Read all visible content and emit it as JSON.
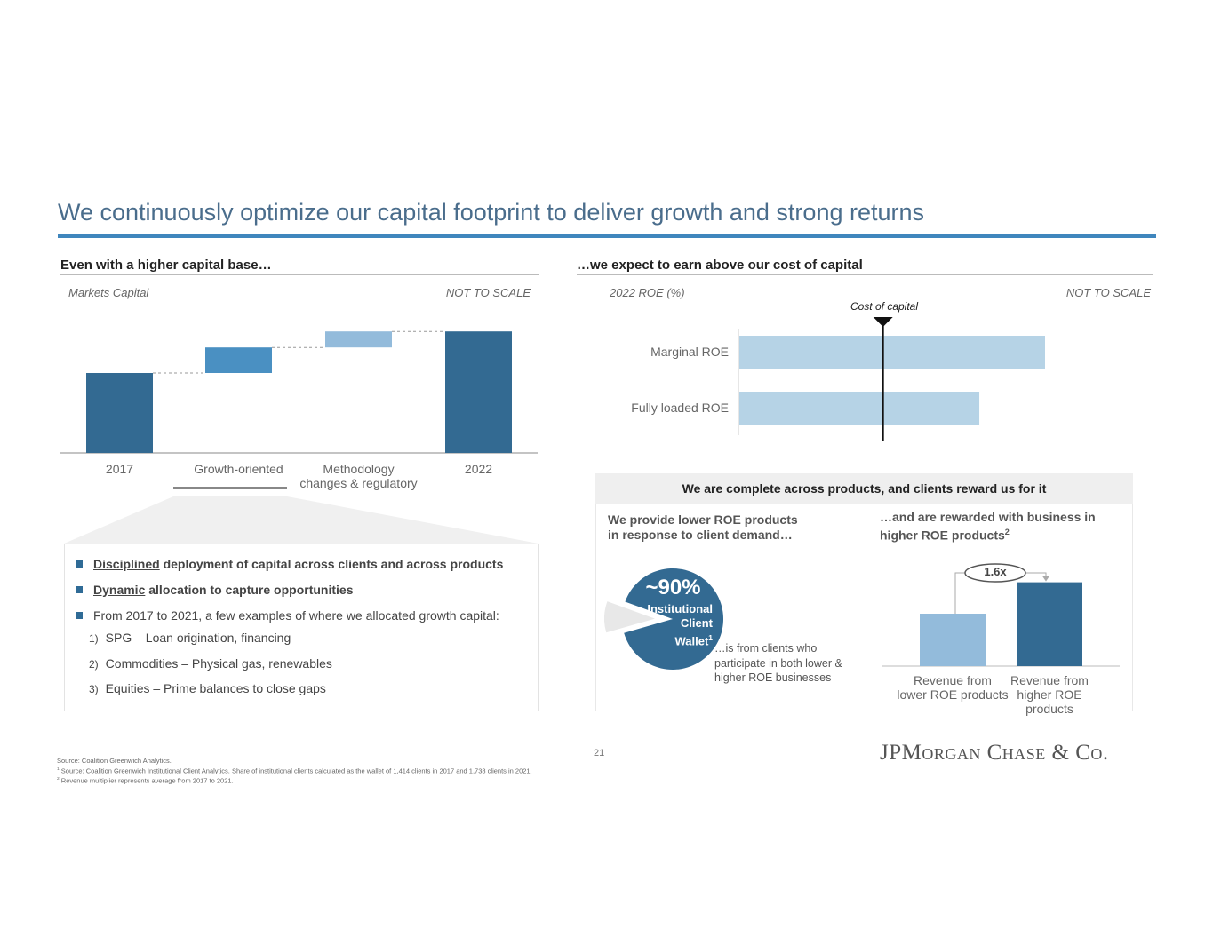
{
  "title": "We continuously optimize our capital footprint to deliver growth and strong returns",
  "left": {
    "heading": "Even with a higher capital base…",
    "subtitle": "Markets Capital",
    "scale_note": "NOT TO SCALE",
    "callout": {
      "bullets": [
        {
          "em": "Disciplined",
          "rest": " deployment of capital across clients and across products"
        },
        {
          "em": "Dynamic",
          "rest": " allocation to capture opportunities"
        },
        {
          "text": "From 2017 to 2021, a few examples of where we allocated growth capital:"
        }
      ],
      "examples": [
        {
          "num": "1)",
          "text": "SPG – Loan origination, financing"
        },
        {
          "num": "2)",
          "text": "Commodities – Physical gas, renewables"
        },
        {
          "num": "3)",
          "text": "Equities – Prime balances to close gaps"
        }
      ]
    }
  },
  "right": {
    "heading": "…we expect to earn above our cost of capital",
    "subtitle": "2022 ROE (%)",
    "scale_note": "NOT TO SCALE",
    "cost_label": "Cost of capital",
    "panel": {
      "heading": "We are complete across products, and clients reward us for it",
      "left_heading_1": "We provide lower ROE products",
      "left_heading_2": "in response to client demand…",
      "right_heading_1": "…and are rewarded with business in",
      "right_heading_2": "higher ROE products",
      "right_sup": "2",
      "pie_pct": "~90%",
      "pie_l1": "Institutional",
      "pie_l2": "Client",
      "pie_l3": "Wallet",
      "pie_sup": "1",
      "pie_note_1": "…is from clients who",
      "pie_note_2": "participate in both lower &",
      "pie_note_3": "higher ROE businesses",
      "multiplier": "1.6x"
    }
  },
  "chart_data": [
    {
      "type": "bar",
      "subtype": "waterfall",
      "title": "Markets Capital",
      "categories": [
        "2017",
        "Growth-oriented",
        "Methodology changes & regulatory",
        "2022"
      ],
      "category_lines": [
        [
          "2017"
        ],
        [
          "Growth-oriented"
        ],
        [
          "Methodology",
          "changes & regulatory"
        ],
        [
          "2022"
        ]
      ],
      "values": [
        100,
        32,
        20,
        152
      ],
      "note": "NOT TO SCALE",
      "colors": [
        "#336a92",
        "#4a90c2",
        "#93bbdb",
        "#336a92"
      ]
    },
    {
      "type": "bar",
      "orientation": "horizontal",
      "title": "2022 ROE (%)",
      "categories": [
        "Marginal ROE",
        "Fully loaded ROE"
      ],
      "values": [
        20,
        15.7
      ],
      "reference_line": {
        "label": "Cost of capital",
        "value": 9.4
      },
      "color": "#b6d3e6"
    },
    {
      "type": "pie",
      "values": [
        90,
        10
      ],
      "labels": [
        "~90% Institutional Client Wallet",
        "Other"
      ],
      "colors": [
        "#336a92",
        "#e8e8e8"
      ]
    },
    {
      "type": "bar",
      "categories": [
        "Revenue from lower ROE products",
        "Revenue from higher ROE products"
      ],
      "category_lines": [
        [
          "Revenue from",
          "lower ROE products"
        ],
        [
          "Revenue from",
          "higher ROE products"
        ]
      ],
      "values": [
        1.0,
        1.6
      ],
      "colors": [
        "#93bbdb",
        "#336a92"
      ],
      "annotation": "1.6x"
    }
  ],
  "footer": {
    "page": "21",
    "source": "Source: Coalition Greenwich Analytics.",
    "note1": "Source: Coalition Greenwich Institutional Client Analytics. Share of institutional clients calculated as the wallet of 1,414 clients in 2017 and 1,738 clients in 2021.",
    "note2": "Revenue multiplier represents average from 2017 to 2021.",
    "n1": "1",
    "n2": "2",
    "logo": "JPMorgan Chase & Co."
  }
}
